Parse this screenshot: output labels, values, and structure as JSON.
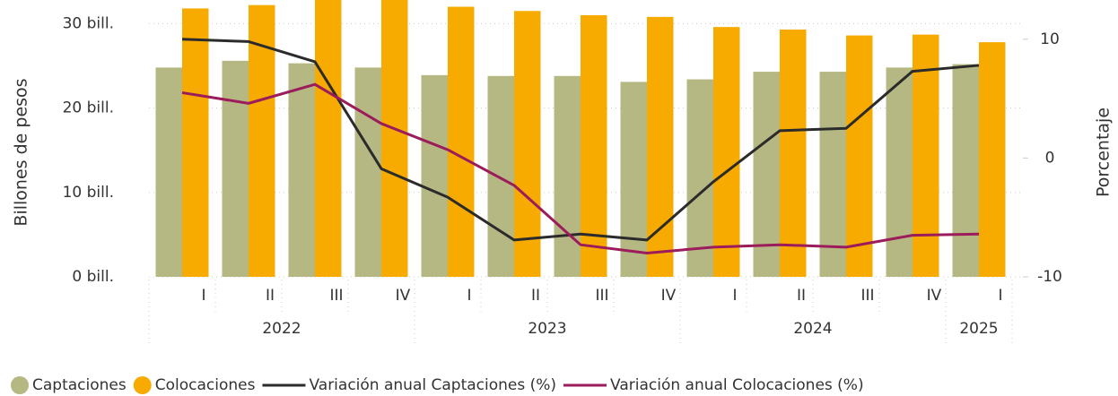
{
  "chart_data": {
    "type": "combo",
    "groups": [
      {
        "label": "2022",
        "categories": [
          "I",
          "II",
          "III",
          "IV"
        ]
      },
      {
        "label": "2023",
        "categories": [
          "I",
          "II",
          "III",
          "IV"
        ]
      },
      {
        "label": "2024",
        "categories": [
          "I",
          "II",
          "III",
          "IV"
        ]
      },
      {
        "label": "2025",
        "categories": [
          "I"
        ]
      }
    ],
    "series": [
      {
        "name": "Captaciones",
        "kind": "bar",
        "color": "#b6b883",
        "values": [
          24.8,
          25.6,
          25.3,
          24.8,
          23.9,
          23.8,
          23.8,
          23.1,
          23.4,
          24.3,
          24.3,
          24.8,
          25.2
        ]
      },
      {
        "name": "Colocaciones",
        "kind": "bar",
        "color": "#f7ab00",
        "values": [
          31.8,
          32.2,
          33.5,
          33.8,
          32.0,
          31.5,
          31.0,
          30.8,
          29.6,
          29.3,
          28.6,
          28.7,
          27.8
        ]
      },
      {
        "name": "Variación anual Captaciones (%)",
        "kind": "line",
        "axis": "y2",
        "color": "#2b2b2b",
        "values": [
          10.0,
          9.8,
          8.1,
          -0.9,
          -3.3,
          -6.9,
          -6.4,
          -6.9,
          -2.0,
          2.3,
          2.5,
          7.3,
          7.8
        ]
      },
      {
        "name": "Variación anual Colocaciones (%)",
        "kind": "line",
        "axis": "y2",
        "color": "#9b1b5b",
        "values": [
          5.5,
          4.6,
          6.2,
          2.9,
          0.7,
          -2.3,
          -7.3,
          -8.0,
          -7.5,
          -7.3,
          -7.5,
          -6.5,
          -6.4
        ]
      }
    ],
    "ylabel": "Billones de pesos",
    "y2label": "Porcentaje",
    "ylim": [
      0,
      32.8
    ],
    "yticks": [
      {
        "value": 0,
        "label": "0 bill."
      },
      {
        "value": 10,
        "label": "10 bill."
      },
      {
        "value": 20,
        "label": "20 bill."
      },
      {
        "value": 30,
        "label": "30 bill."
      }
    ],
    "y2lim": [
      -10,
      13.3
    ],
    "y2ticks": [
      -10,
      0,
      10
    ],
    "grid": true,
    "legend": "bottom"
  }
}
